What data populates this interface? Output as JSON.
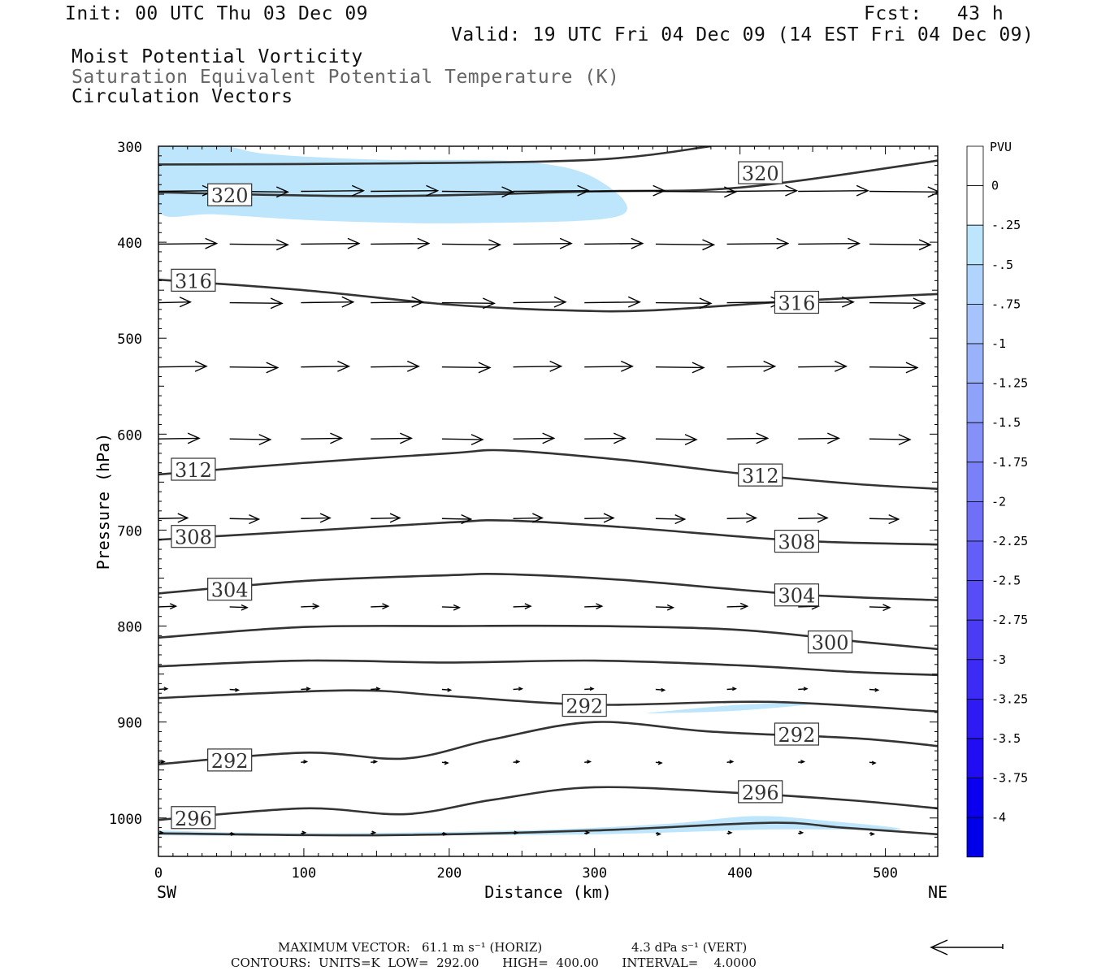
{
  "header": {
    "init": "Init: 00 UTC Thu 03 Dec 09",
    "fcst": "Fcst:   43 h",
    "valid": "Valid: 19 UTC Fri 04 Dec 09 (14 EST Fri 04 Dec 09)",
    "fields": [
      "Moist Potential Vorticity",
      "Saturation Equivalent Potential Temperature (K)",
      "Circulation Vectors"
    ]
  },
  "colorbar": {
    "unit": "PVU",
    "labels": [
      "0",
      "-.25",
      "-.5",
      "-.75",
      "-1",
      "-1.25",
      "-1.5",
      "-1.75",
      "-2",
      "-2.25",
      "-2.5",
      "-2.75",
      "-3",
      "-3.25",
      "-3.5",
      "-3.75",
      "-4"
    ],
    "colors": [
      "#ffffff",
      "#ffffff",
      "#bde5fb",
      "#b0d4fb",
      "#a6c4fb",
      "#9ab2fa",
      "#8fa2f9",
      "#8590f9",
      "#7a80f8",
      "#6f6ff7",
      "#635ef7",
      "#574cf6",
      "#4a3bf5",
      "#3c2bf4",
      "#2e1af3",
      "#200df2",
      "#0a00ef",
      "#0000e8"
    ]
  },
  "footer": {
    "max_vector_label": "MAXIMUM VECTOR:",
    "horiz": "61.1 m s⁻¹ (HORIZ)",
    "vert": "4.3 dPa s⁻¹ (VERT)",
    "contours": "CONTOURS:  UNITS=K  LOW=  292.00      HIGH=  400.00      INTERVAL=    4.0000"
  },
  "chart_data": {
    "type": "cross-section contour",
    "xlabel": "Distance (km)",
    "ylabel": "Pressure (hPa)",
    "xlim": [
      0,
      536
    ],
    "ylim": [
      1040,
      300
    ],
    "x_ticks": [
      0,
      100,
      200,
      300,
      400,
      500
    ],
    "y_ticks": [
      300,
      400,
      500,
      600,
      700,
      800,
      900,
      1000
    ],
    "left_end_label": "SW",
    "right_end_label": "NE",
    "contours": [
      {
        "label": "320",
        "points": [
          [
            0,
            319
          ],
          [
            150,
            318
          ],
          [
            300,
            314
          ],
          [
            380,
            300
          ]
        ]
      },
      {
        "label": "320",
        "points": [
          [
            0,
            348
          ],
          [
            150,
            352
          ],
          [
            300,
            347
          ],
          [
            400,
            343
          ],
          [
            536,
            315
          ]
        ],
        "label_at": [
          [
            49,
            351
          ],
          [
            414,
            328
          ]
        ]
      },
      {
        "label": "316",
        "points": [
          [
            0,
            439
          ],
          [
            100,
            450
          ],
          [
            200,
            465
          ],
          [
            280,
            471
          ],
          [
            340,
            471
          ],
          [
            440,
            461
          ],
          [
            536,
            454
          ]
        ],
        "label_at": [
          [
            24,
            440
          ],
          [
            439,
            463
          ]
        ]
      },
      {
        "label": "312",
        "points": [
          [
            0,
            642
          ],
          [
            100,
            630
          ],
          [
            200,
            620
          ],
          [
            240,
            617
          ],
          [
            320,
            627
          ],
          [
            400,
            641
          ],
          [
            480,
            652
          ],
          [
            536,
            657
          ]
        ],
        "label_at": [
          [
            24,
            637
          ],
          [
            414,
            643
          ]
        ]
      },
      {
        "label": "308",
        "points": [
          [
            0,
            710
          ],
          [
            100,
            701
          ],
          [
            200,
            692
          ],
          [
            240,
            690
          ],
          [
            320,
            697
          ],
          [
            440,
            711
          ],
          [
            536,
            715
          ]
        ],
        "label_at": [
          [
            24,
            707
          ],
          [
            439,
            712
          ]
        ]
      },
      {
        "label": "304",
        "points": [
          [
            0,
            766
          ],
          [
            100,
            753
          ],
          [
            200,
            747
          ],
          [
            240,
            746
          ],
          [
            320,
            752
          ],
          [
            440,
            767
          ],
          [
            536,
            773
          ]
        ],
        "label_at": [
          [
            49,
            762
          ],
          [
            439,
            768
          ]
        ]
      },
      {
        "label": "300",
        "points": [
          [
            0,
            812
          ],
          [
            100,
            801
          ],
          [
            200,
            800
          ],
          [
            300,
            800
          ],
          [
            400,
            804
          ],
          [
            480,
            816
          ],
          [
            536,
            824
          ]
        ],
        "label_at": [
          [
            462,
            817
          ]
        ]
      },
      {
        "label": "",
        "points": [
          [
            0,
            842
          ],
          [
            100,
            836
          ],
          [
            200,
            838
          ],
          [
            300,
            836
          ],
          [
            400,
            841
          ],
          [
            480,
            848
          ],
          [
            536,
            851
          ]
        ]
      },
      {
        "label": "292",
        "points": [
          [
            0,
            875
          ],
          [
            130,
            867
          ],
          [
            200,
            873
          ],
          [
            300,
            882
          ],
          [
            420,
            879
          ],
          [
            536,
            889
          ]
        ],
        "label_at": [
          [
            293,
            883
          ]
        ]
      },
      {
        "label": "292",
        "points": [
          [
            0,
            944
          ],
          [
            100,
            932
          ],
          [
            170,
            938
          ],
          [
            230,
            918
          ],
          [
            300,
            900
          ],
          [
            380,
            910
          ],
          [
            480,
            917
          ],
          [
            536,
            925
          ]
        ],
        "label_at": [
          [
            49,
            940
          ],
          [
            439,
            913
          ]
        ]
      },
      {
        "label": "296",
        "points": [
          [
            0,
            1002
          ],
          [
            100,
            990
          ],
          [
            170,
            996
          ],
          [
            230,
            981
          ],
          [
            300,
            968
          ],
          [
            400,
            974
          ],
          [
            480,
            982
          ],
          [
            536,
            990
          ]
        ],
        "label_at": [
          [
            24,
            1000
          ],
          [
            414,
            973
          ]
        ]
      },
      {
        "label": "",
        "points": [
          [
            0,
            1016
          ],
          [
            150,
            1018
          ],
          [
            300,
            1013
          ],
          [
            420,
            1005
          ],
          [
            470,
            1010
          ],
          [
            536,
            1017
          ]
        ]
      }
    ],
    "mpv_shading": [
      {
        "level": "-.25",
        "points": [
          [
            0,
            300
          ],
          [
            45,
            300
          ],
          [
            75,
            308
          ],
          [
            150,
            314
          ],
          [
            250,
            316
          ],
          [
            300,
            333
          ],
          [
            318,
            372
          ],
          [
            220,
            380
          ],
          [
            120,
            378
          ],
          [
            40,
            371
          ],
          [
            0,
            368
          ]
        ]
      },
      {
        "level": "-.25",
        "points": [
          [
            340,
            890
          ],
          [
            400,
            882
          ],
          [
            456,
            880
          ],
          [
            400,
            888
          ],
          [
            340,
            891
          ]
        ]
      },
      {
        "level": "-.25",
        "points": [
          [
            0,
            1013
          ],
          [
            100,
            1016
          ],
          [
            250,
            1013
          ],
          [
            350,
            1006
          ],
          [
            410,
            998
          ],
          [
            460,
            1003
          ],
          [
            510,
            1012
          ],
          [
            420,
            1012
          ],
          [
            300,
            1017
          ],
          [
            150,
            1018
          ],
          [
            0,
            1018
          ]
        ]
      }
    ],
    "vector_rows": [
      {
        "pressure": 347,
        "x": [
          0,
          49,
          98,
          146,
          195,
          244,
          293,
          342,
          391,
          440,
          489
        ],
        "length_km": [
          38,
          40,
          43,
          46,
          49,
          52,
          55,
          55,
          48,
          48,
          48
        ]
      },
      {
        "pressure": 402,
        "x": [
          0,
          49,
          98,
          146,
          195,
          244,
          293,
          342,
          391,
          440,
          489
        ],
        "length_km": [
          40,
          40,
          40,
          40,
          40,
          40,
          40,
          40,
          42,
          42,
          42
        ]
      },
      {
        "pressure": 463,
        "x": [
          0,
          49,
          98,
          146,
          195,
          244,
          293,
          342,
          391,
          440,
          489
        ],
        "length_km": [
          22,
          36,
          36,
          36,
          36,
          36,
          38,
          38,
          38,
          38,
          38
        ]
      },
      {
        "pressure": 530,
        "x": [
          0,
          49,
          98,
          146,
          195,
          244,
          293,
          342,
          391,
          440,
          489
        ],
        "length_km": [
          33,
          33,
          33,
          33,
          33,
          33,
          33,
          33,
          33,
          33,
          33
        ]
      },
      {
        "pressure": 605,
        "x": [
          0,
          49,
          98,
          146,
          195,
          244,
          293,
          342,
          391,
          440,
          489
        ],
        "length_km": [
          28,
          28,
          28,
          28,
          28,
          28,
          28,
          28,
          28,
          28,
          28
        ]
      },
      {
        "pressure": 688,
        "x": [
          0,
          49,
          98,
          146,
          195,
          244,
          293,
          342,
          391,
          440,
          489
        ],
        "length_km": [
          20,
          20,
          20,
          20,
          20,
          20,
          20,
          20,
          20,
          20,
          20
        ]
      },
      {
        "pressure": 780,
        "x": [
          0,
          49,
          98,
          146,
          195,
          244,
          293,
          342,
          391,
          440,
          489
        ],
        "length_km": [
          12,
          12,
          12,
          12,
          12,
          12,
          12,
          12,
          14,
          14,
          14
        ]
      },
      {
        "pressure": 866,
        "x": [
          0,
          49,
          98,
          146,
          195,
          244,
          293,
          342,
          391,
          440,
          489
        ],
        "length_km": [
          6,
          6,
          6,
          6,
          6,
          6,
          6,
          6,
          6,
          6,
          6
        ]
      },
      {
        "pressure": 942,
        "x": [
          0,
          49,
          98,
          146,
          195,
          244,
          293,
          342,
          391,
          440,
          489
        ],
        "length_km": [
          4,
          4,
          4,
          4,
          4,
          4,
          4,
          4,
          4,
          4,
          4
        ]
      },
      {
        "pressure": 1016,
        "x": [
          0,
          49,
          98,
          146,
          195,
          244,
          293,
          342,
          391,
          440,
          489
        ],
        "length_km": [
          3,
          3,
          3,
          3,
          3,
          3,
          3,
          3,
          3,
          3,
          3
        ]
      }
    ]
  }
}
